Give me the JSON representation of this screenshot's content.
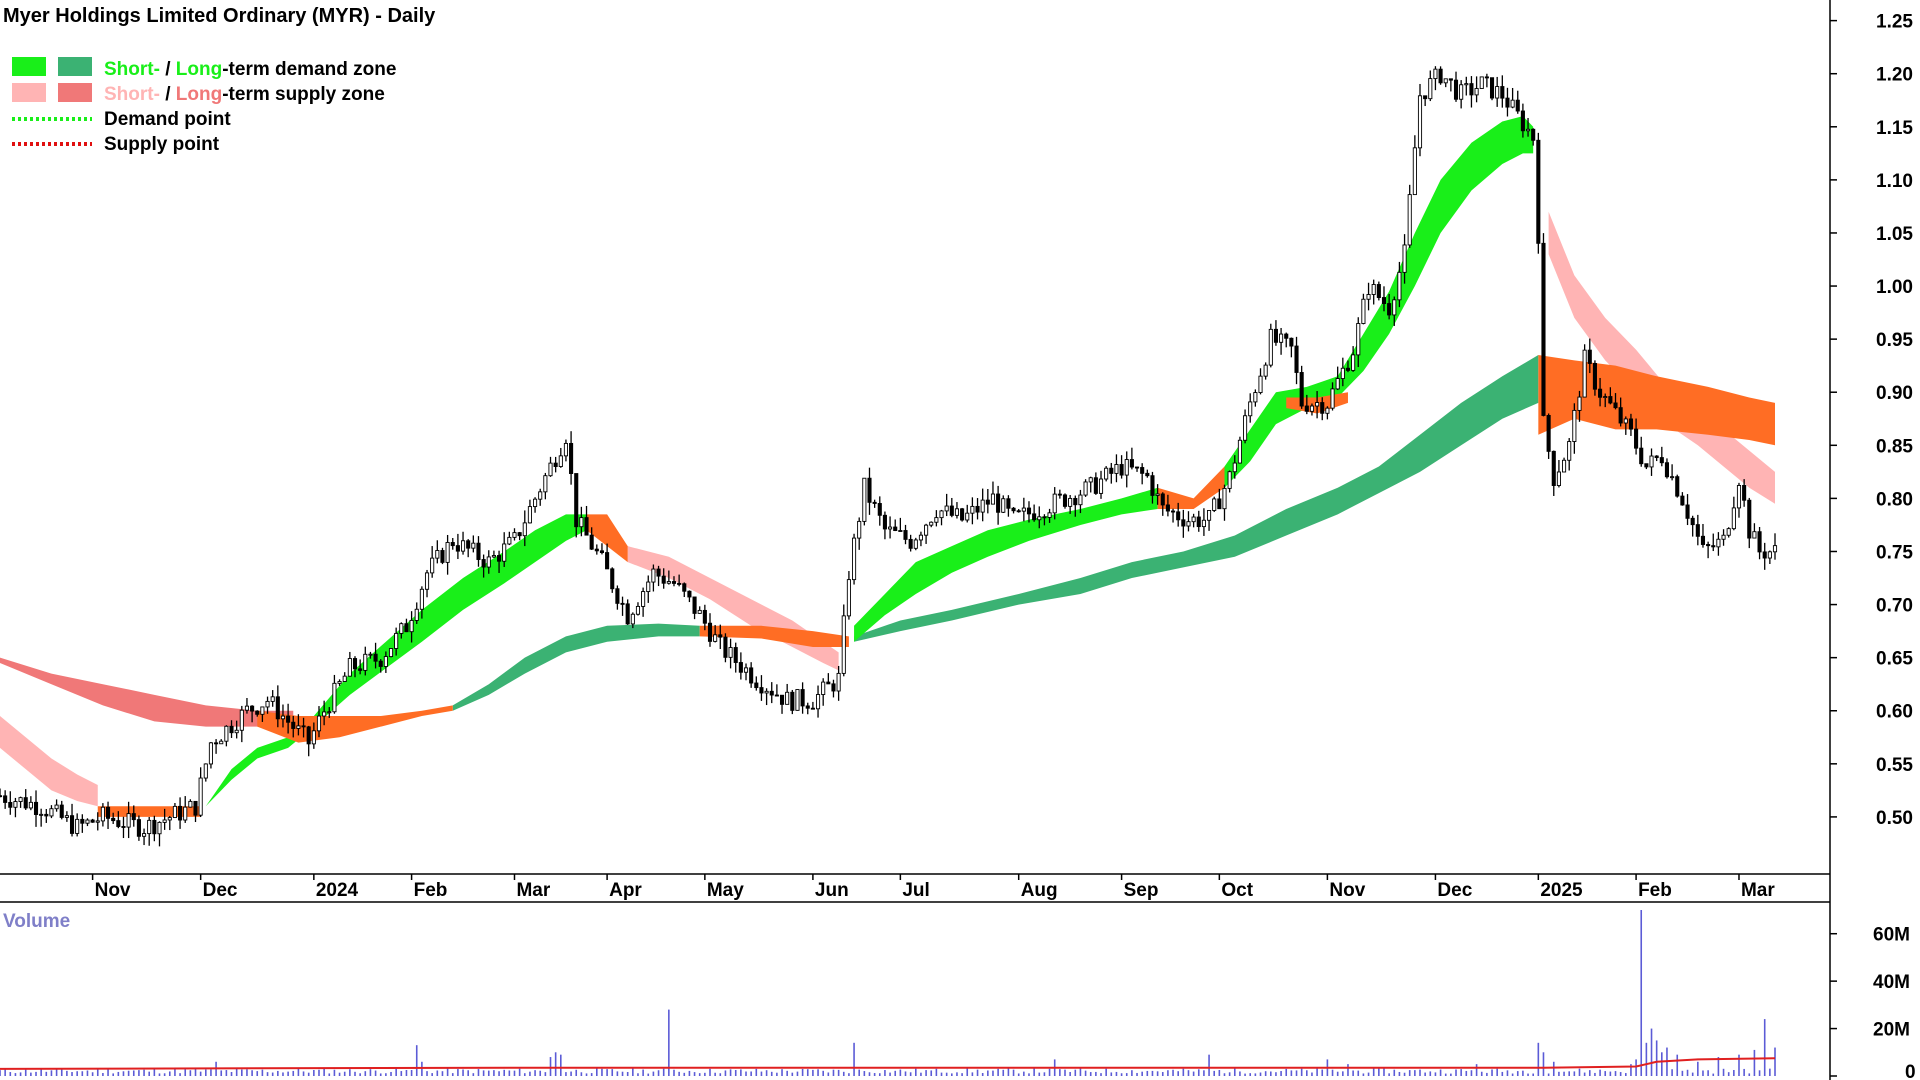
{
  "title": "Myer Holdings Limited Ordinary (MYR) - Daily",
  "legend": {
    "demand_zone": {
      "short": "Short-",
      "sep": " / ",
      "long": "Long",
      "rest": "-term demand zone"
    },
    "supply_zone": {
      "short": "Short-",
      "sep": " / ",
      "long": "Long",
      "rest": "-term supply zone"
    },
    "demand_point": "Demand point",
    "supply_point": "Supply point"
  },
  "colors": {
    "short_demand": "#19ef19",
    "long_demand": "#3bb273",
    "short_supply": "#ffb4b4",
    "long_supply": "#f07878",
    "mixed_zone": "#ff6d24",
    "candle": "#000000",
    "volume_bar": "#5b5bd6",
    "volume_avg": "#e02020",
    "volume_label": "#7f7fc8"
  },
  "icons": {
    "demand_short_swatch": "green-square",
    "demand_long_swatch": "dark-green-square",
    "supply_short_swatch": "pink-square",
    "supply_long_swatch": "red-square",
    "demand_point_line": "green-dotted-line",
    "supply_point_line": "red-dotted-line"
  },
  "chart_data": [
    {
      "type": "candlestick",
      "title": "Myer Holdings Limited Ordinary (MYR) - Daily",
      "y_axis": {
        "side": "right",
        "ticks": [
          "0.50",
          "0.55",
          "0.60",
          "0.65",
          "0.70",
          "0.75",
          "0.80",
          "0.85",
          "0.90",
          "0.95",
          "1.00",
          "1.05",
          "1.10",
          "1.15",
          "1.20",
          "1.25"
        ],
        "range": [
          0.45,
          1.26
        ]
      },
      "x_axis": {
        "labels": [
          "Nov",
          "Dec",
          "2024",
          "Feb",
          "Mar",
          "Apr",
          "May",
          "Jun",
          "Jul",
          "Aug",
          "Sep",
          "Oct",
          "Nov",
          "Dec",
          "2025",
          "Feb",
          "Mar"
        ]
      },
      "x_range": [
        0,
        345
      ],
      "month_ticks": [
        18,
        39,
        61,
        80,
        100,
        118,
        137,
        158,
        175,
        198,
        218,
        237,
        258,
        279,
        299,
        318,
        338
      ],
      "close_path": [
        [
          0,
          0.52
        ],
        [
          8,
          0.51
        ],
        [
          15,
          0.49
        ],
        [
          20,
          0.5
        ],
        [
          28,
          0.49
        ],
        [
          38,
          0.51
        ],
        [
          41,
          0.57
        ],
        [
          48,
          0.6
        ],
        [
          52,
          0.61
        ],
        [
          56,
          0.59
        ],
        [
          60,
          0.57
        ],
        [
          63,
          0.6
        ],
        [
          68,
          0.64
        ],
        [
          74,
          0.65
        ],
        [
          79,
          0.68
        ],
        [
          83,
          0.73
        ],
        [
          88,
          0.76
        ],
        [
          95,
          0.74
        ],
        [
          100,
          0.76
        ],
        [
          104,
          0.8
        ],
        [
          108,
          0.84
        ],
        [
          110,
          0.86
        ],
        [
          112,
          0.78
        ],
        [
          117,
          0.74
        ],
        [
          122,
          0.69
        ],
        [
          127,
          0.73
        ],
        [
          131,
          0.72
        ],
        [
          136,
          0.69
        ],
        [
          140,
          0.66
        ],
        [
          147,
          0.63
        ],
        [
          153,
          0.61
        ],
        [
          158,
          0.61
        ],
        [
          163,
          0.63
        ],
        [
          165,
          0.73
        ],
        [
          168,
          0.81
        ],
        [
          172,
          0.77
        ],
        [
          177,
          0.76
        ],
        [
          182,
          0.79
        ],
        [
          187,
          0.78
        ],
        [
          193,
          0.8
        ],
        [
          197,
          0.78
        ],
        [
          202,
          0.79
        ],
        [
          207,
          0.8
        ],
        [
          212,
          0.81
        ],
        [
          218,
          0.83
        ],
        [
          223,
          0.82
        ],
        [
          226,
          0.79
        ],
        [
          231,
          0.78
        ],
        [
          235,
          0.78
        ],
        [
          239,
          0.82
        ],
        [
          243,
          0.89
        ],
        [
          247,
          0.95
        ],
        [
          251,
          0.94
        ],
        [
          253,
          0.89
        ],
        [
          258,
          0.89
        ],
        [
          263,
          0.94
        ],
        [
          266,
          1.0
        ],
        [
          270,
          0.98
        ],
        [
          273,
          1.03
        ],
        [
          276,
          1.18
        ],
        [
          280,
          1.2
        ],
        [
          284,
          1.18
        ],
        [
          288,
          1.19
        ],
        [
          292,
          1.18
        ],
        [
          295,
          1.16
        ],
        [
          298,
          1.14
        ],
        [
          299,
          1.05
        ],
        [
          300,
          0.87
        ],
        [
          302,
          0.82
        ],
        [
          305,
          0.85
        ],
        [
          308,
          0.93
        ],
        [
          311,
          0.9
        ],
        [
          314,
          0.88
        ],
        [
          317,
          0.86
        ],
        [
          320,
          0.83
        ],
        [
          323,
          0.84
        ],
        [
          327,
          0.8
        ],
        [
          331,
          0.75
        ],
        [
          335,
          0.76
        ],
        [
          338,
          0.82
        ],
        [
          340,
          0.77
        ],
        [
          342,
          0.75
        ]
      ],
      "short_demand_segments": [
        [
          [
            40,
            0.51,
            0.51
          ],
          [
            45,
            0.535,
            0.545
          ],
          [
            50,
            0.555,
            0.565
          ],
          [
            56,
            0.565,
            0.575
          ],
          [
            61,
            0.585,
            0.595
          ],
          [
            68,
            0.615,
            0.635
          ],
          [
            75,
            0.64,
            0.665
          ],
          [
            82,
            0.665,
            0.695
          ],
          [
            90,
            0.695,
            0.725
          ],
          [
            98,
            0.72,
            0.75
          ],
          [
            104,
            0.74,
            0.77
          ],
          [
            110,
            0.76,
            0.785
          ],
          [
            114,
            0.77,
            0.785
          ]
        ],
        [
          [
            166,
            0.665,
            0.68
          ],
          [
            172,
            0.69,
            0.71
          ],
          [
            178,
            0.71,
            0.74
          ],
          [
            185,
            0.73,
            0.755
          ],
          [
            192,
            0.745,
            0.77
          ],
          [
            200,
            0.76,
            0.78
          ],
          [
            210,
            0.775,
            0.79
          ],
          [
            218,
            0.785,
            0.8
          ],
          [
            225,
            0.79,
            0.81
          ]
        ],
        [
          [
            238,
            0.81,
            0.83
          ],
          [
            243,
            0.835,
            0.865
          ],
          [
            248,
            0.87,
            0.9
          ],
          [
            254,
            0.885,
            0.905
          ],
          [
            260,
            0.895,
            0.915
          ],
          [
            265,
            0.92,
            0.955
          ],
          [
            270,
            0.955,
            0.995
          ],
          [
            275,
            1.0,
            1.05
          ],
          [
            280,
            1.05,
            1.1
          ],
          [
            286,
            1.09,
            1.135
          ],
          [
            292,
            1.115,
            1.155
          ],
          [
            296,
            1.125,
            1.16
          ],
          [
            298,
            1.125,
            1.15
          ]
        ]
      ],
      "long_demand_segments": [
        [
          [
            88,
            0.6,
            0.605
          ],
          [
            95,
            0.615,
            0.625
          ],
          [
            102,
            0.635,
            0.65
          ],
          [
            110,
            0.655,
            0.67
          ],
          [
            118,
            0.665,
            0.68
          ],
          [
            128,
            0.67,
            0.682
          ],
          [
            136,
            0.67,
            0.68
          ]
        ],
        [
          [
            166,
            0.665,
            0.67
          ],
          [
            175,
            0.675,
            0.685
          ],
          [
            185,
            0.685,
            0.695
          ],
          [
            198,
            0.7,
            0.71
          ],
          [
            210,
            0.71,
            0.725
          ],
          [
            220,
            0.725,
            0.74
          ],
          [
            230,
            0.735,
            0.75
          ],
          [
            240,
            0.745,
            0.765
          ],
          [
            250,
            0.765,
            0.79
          ],
          [
            260,
            0.785,
            0.81
          ],
          [
            268,
            0.805,
            0.83
          ],
          [
            276,
            0.825,
            0.86
          ],
          [
            284,
            0.85,
            0.89
          ],
          [
            292,
            0.875,
            0.915
          ],
          [
            299,
            0.89,
            0.935
          ]
        ]
      ],
      "short_supply_segments": [
        [
          [
            0,
            0.565,
            0.595
          ],
          [
            5,
            0.545,
            0.575
          ],
          [
            10,
            0.525,
            0.555
          ],
          [
            15,
            0.515,
            0.54
          ],
          [
            19,
            0.51,
            0.53
          ]
        ],
        [
          [
            122,
            0.74,
            0.755
          ],
          [
            130,
            0.725,
            0.745
          ],
          [
            138,
            0.705,
            0.725
          ],
          [
            146,
            0.68,
            0.705
          ],
          [
            154,
            0.66,
            0.685
          ],
          [
            160,
            0.645,
            0.665
          ],
          [
            163,
            0.638,
            0.655
          ]
        ],
        [
          [
            301,
            1.03,
            1.07
          ],
          [
            306,
            0.97,
            1.01
          ],
          [
            312,
            0.93,
            0.97
          ],
          [
            318,
            0.9,
            0.94
          ],
          [
            324,
            0.87,
            0.905
          ],
          [
            330,
            0.85,
            0.885
          ],
          [
            335,
            0.83,
            0.865
          ],
          [
            340,
            0.81,
            0.845
          ],
          [
            345,
            0.795,
            0.825
          ]
        ]
      ],
      "long_supply_segments": [
        [
          [
            0,
            0.645,
            0.65
          ],
          [
            10,
            0.625,
            0.635
          ],
          [
            20,
            0.605,
            0.625
          ],
          [
            30,
            0.59,
            0.615
          ],
          [
            40,
            0.585,
            0.605
          ],
          [
            50,
            0.585,
            0.6
          ],
          [
            57,
            0.59,
            0.6
          ]
        ]
      ],
      "mixed_zone_segments": [
        [
          [
            19,
            0.5,
            0.51
          ],
          [
            39,
            0.5,
            0.51
          ]
        ],
        [
          [
            50,
            0.585,
            0.6
          ],
          [
            58,
            0.57,
            0.595
          ],
          [
            66,
            0.575,
            0.595
          ],
          [
            74,
            0.585,
            0.595
          ],
          [
            82,
            0.595,
            0.6
          ],
          [
            88,
            0.6,
            0.605
          ]
        ],
        [
          [
            114,
            0.77,
            0.785
          ],
          [
            118,
            0.755,
            0.785
          ],
          [
            122,
            0.74,
            0.755
          ]
        ],
        [
          [
            136,
            0.67,
            0.68
          ],
          [
            148,
            0.668,
            0.68
          ],
          [
            158,
            0.66,
            0.675
          ],
          [
            165,
            0.66,
            0.67
          ]
        ],
        [
          [
            225,
            0.79,
            0.81
          ],
          [
            232,
            0.79,
            0.8
          ],
          [
            238,
            0.81,
            0.83
          ]
        ],
        [
          [
            250,
            0.885,
            0.895
          ],
          [
            256,
            0.88,
            0.895
          ],
          [
            262,
            0.89,
            0.9
          ]
        ],
        [
          [
            299,
            0.86,
            0.935
          ],
          [
            306,
            0.875,
            0.93
          ],
          [
            314,
            0.865,
            0.925
          ],
          [
            322,
            0.865,
            0.915
          ],
          [
            332,
            0.86,
            0.905
          ],
          [
            340,
            0.855,
            0.895
          ],
          [
            345,
            0.85,
            0.89
          ]
        ]
      ]
    },
    {
      "type": "bar",
      "title": "Volume",
      "y_axis": {
        "side": "right",
        "ticks": [
          "0",
          "20M",
          "40M",
          "60M"
        ],
        "range": [
          0,
          70000000
        ]
      },
      "spikes": [
        [
          42,
          6000000
        ],
        [
          81,
          13000000
        ],
        [
          82,
          6000000
        ],
        [
          107,
          8000000
        ],
        [
          108,
          10000000
        ],
        [
          109,
          9000000
        ],
        [
          130,
          28000000
        ],
        [
          166,
          14000000
        ],
        [
          205,
          7000000
        ],
        [
          235,
          9000000
        ],
        [
          258,
          7000000
        ],
        [
          262,
          5000000
        ],
        [
          287,
          5000000
        ],
        [
          299,
          14000000
        ],
        [
          300,
          10000000
        ],
        [
          302,
          6000000
        ],
        [
          317,
          5000000
        ],
        [
          318,
          7000000
        ],
        [
          319,
          70000000
        ],
        [
          320,
          14000000
        ],
        [
          321,
          20000000
        ],
        [
          322,
          15000000
        ],
        [
          323,
          10000000
        ],
        [
          324,
          12000000
        ],
        [
          326,
          9000000
        ],
        [
          330,
          6000000
        ],
        [
          334,
          8000000
        ],
        [
          338,
          9000000
        ],
        [
          341,
          11000000
        ],
        [
          343,
          24000000
        ],
        [
          345,
          12000000
        ]
      ],
      "base_volume": 2500000,
      "avg_line": [
        [
          0,
          3000000
        ],
        [
          100,
          3500000
        ],
        [
          200,
          3500000
        ],
        [
          300,
          3500000
        ],
        [
          318,
          4000000
        ],
        [
          322,
          6000000
        ],
        [
          330,
          7000000
        ],
        [
          345,
          7500000
        ]
      ]
    }
  ]
}
